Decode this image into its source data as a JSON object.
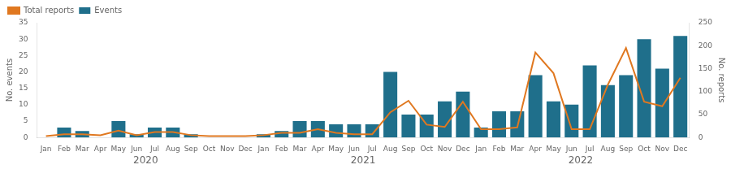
{
  "chart_data": {
    "type": "bar",
    "categories": [
      "Jan",
      "Feb",
      "Mar",
      "Apr",
      "May",
      "Jun",
      "Jul",
      "Aug",
      "Sep",
      "Oct",
      "Nov",
      "Dec",
      "Jan",
      "Feb",
      "Mar",
      "Apr",
      "May",
      "Jun",
      "Jul",
      "Aug",
      "Sep",
      "Oct",
      "Nov",
      "Dec",
      "Jan",
      "Feb",
      "Mar",
      "Apr",
      "May",
      "Jun",
      "Jul",
      "Aug",
      "Sep",
      "Oct",
      "Nov",
      "Dec"
    ],
    "series": [
      {
        "name": "Events",
        "type": "bar",
        "color": "#1f6f8b",
        "values": [
          0,
          3,
          2,
          0,
          5,
          1,
          3,
          3,
          1,
          0,
          0,
          0,
          1,
          2,
          5,
          5,
          4,
          4,
          4,
          20,
          7,
          7,
          11,
          14,
          3,
          8,
          8,
          19,
          11,
          10,
          22,
          16,
          19,
          30,
          21,
          31
        ]
      },
      {
        "name": "Total reports",
        "type": "line",
        "color": "#e07820",
        "axis": "y2",
        "values": [
          3,
          7,
          7,
          5,
          15,
          5,
          12,
          12,
          5,
          3,
          3,
          3,
          5,
          10,
          10,
          18,
          10,
          7,
          7,
          55,
          80,
          28,
          23,
          78,
          18,
          18,
          22,
          185,
          140,
          18,
          18,
          115,
          195,
          78,
          68,
          130
        ]
      }
    ],
    "ylabel": "No. events",
    "y2label": "No. reports",
    "ylim": [
      0,
      35
    ],
    "yticks": [
      0,
      5,
      10,
      15,
      20,
      25,
      30,
      35
    ],
    "y2lim": [
      0,
      250
    ],
    "y2ticks": [
      0,
      50,
      100,
      150,
      200,
      250
    ],
    "annotations": [
      "2020",
      "2021",
      "2022"
    ],
    "legend": "upper left",
    "grid": false
  }
}
